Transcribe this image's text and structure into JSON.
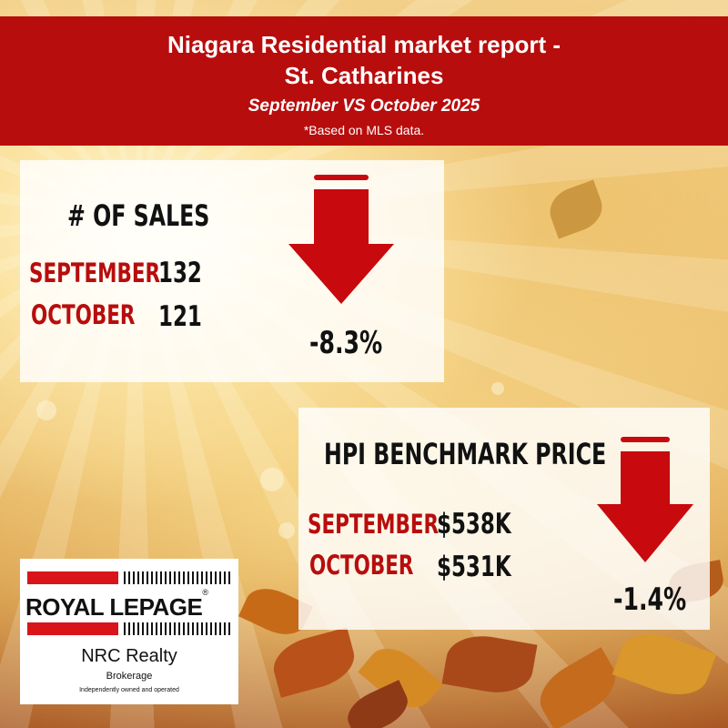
{
  "header": {
    "title_line1": "Niagara Residential market report -",
    "title_line2": "St. Catharines",
    "subtitle": "September VS October 2025",
    "note": "*Based on MLS data."
  },
  "sales": {
    "heading": "# OF SALES",
    "rows": [
      {
        "month": "SEPTEMBER",
        "value": "132"
      },
      {
        "month": "OCTOBER",
        "value": "121"
      }
    ],
    "change": "-8.3%",
    "trend_icon": "down-arrow-icon"
  },
  "hpi": {
    "heading": "HPI BENCHMARK PRICE",
    "rows": [
      {
        "month": "SEPTEMBER",
        "value": "$538K"
      },
      {
        "month": "OCTOBER",
        "value": "$531K"
      }
    ],
    "change": "-1.4%",
    "trend_icon": "down-arrow-icon"
  },
  "logo": {
    "brand": "ROYAL LEPAGE",
    "office": "NRC Realty",
    "brokerage": "Brokerage",
    "tagline": "Independently owned and operated"
  },
  "colors": {
    "accent_red": "#b80d0d",
    "arrow_red": "#c8090d",
    "text_dark": "#111111",
    "panel_bg": "rgba(255,255,255,0.82)"
  },
  "background": "autumn-leaves-sunlight"
}
